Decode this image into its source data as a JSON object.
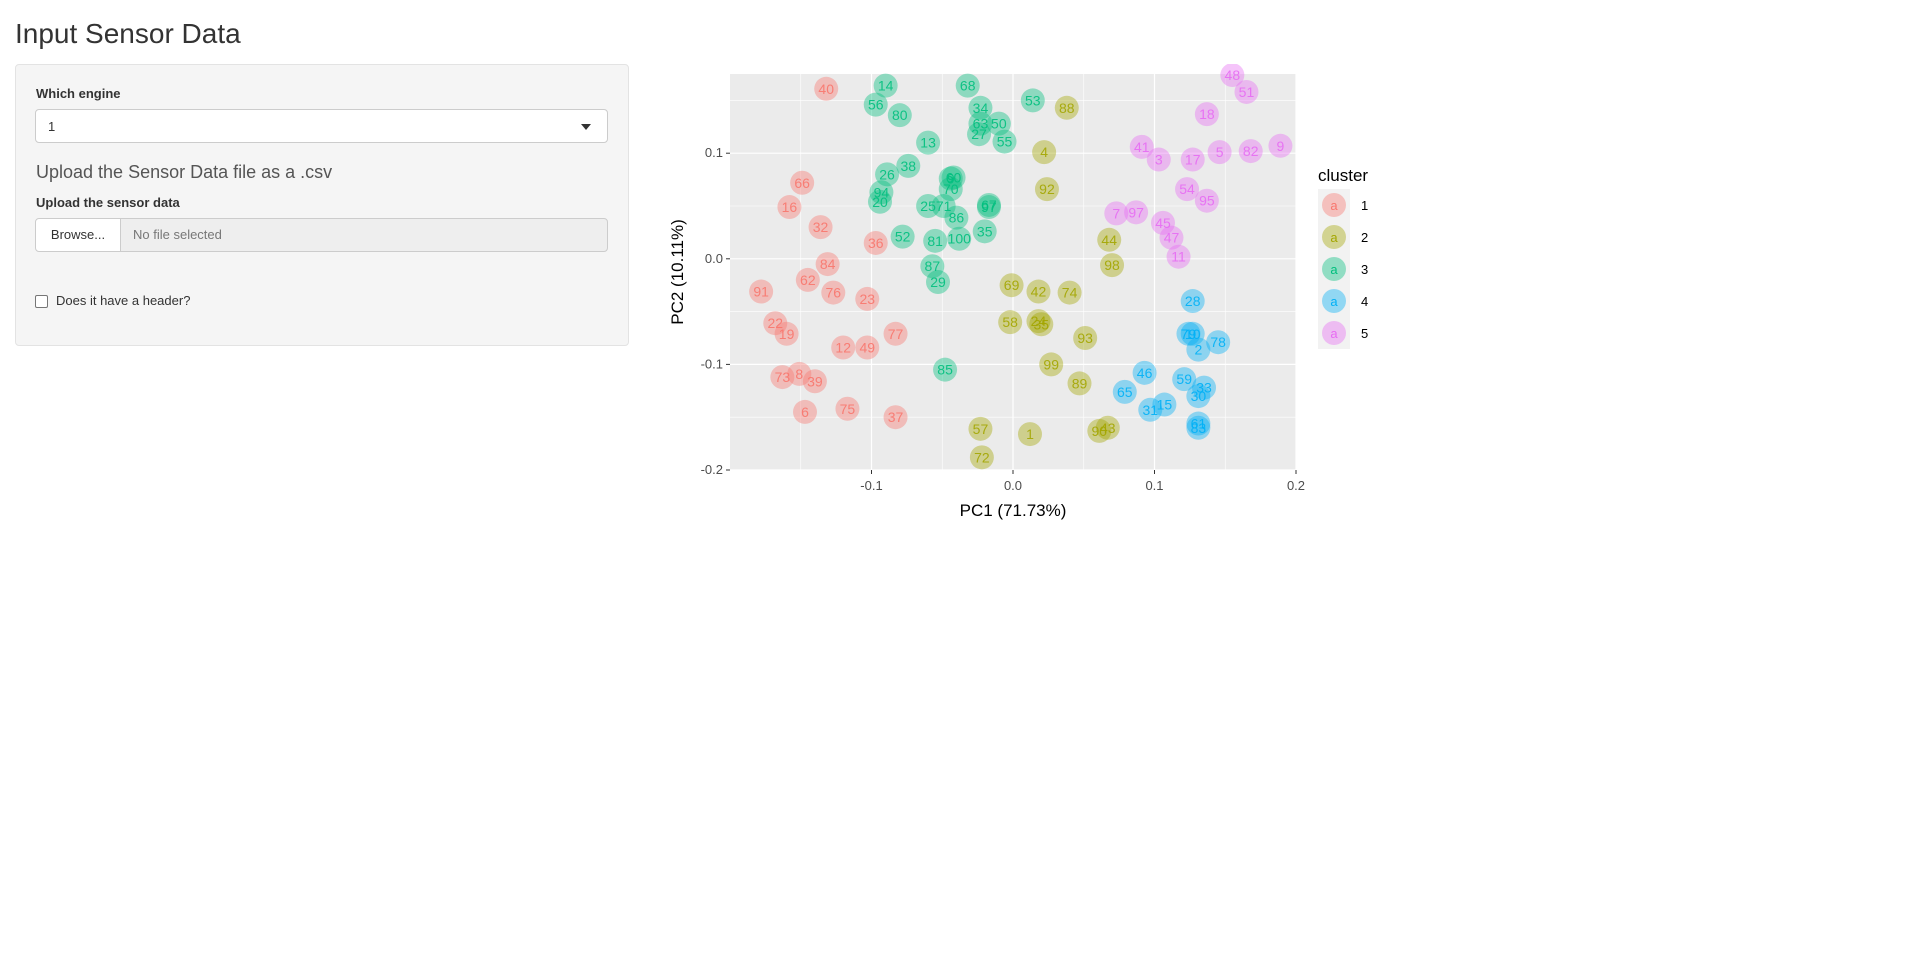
{
  "page": {
    "title": "Input Sensor Data"
  },
  "sidebar": {
    "engine_label": "Which engine",
    "engine_value": "1",
    "upload_heading": "Upload the Sensor Data file as a .csv",
    "upload_label": "Upload the sensor data",
    "browse_button": "Browse...",
    "file_placeholder": "No file selected",
    "header_checkbox_label": "Does it have a header?",
    "header_checked": false
  },
  "chart_data": {
    "type": "scatter",
    "xlabel": "PC1 (71.73%)",
    "ylabel": "PC2 (10.11%)",
    "xlim": [
      -0.2,
      0.2
    ],
    "ylim": [
      -0.2,
      0.175
    ],
    "x_ticks": [
      -0.1,
      0.0,
      0.1,
      0.2
    ],
    "x_tick_labels": [
      "-0.1",
      "0.0",
      "0.1",
      "0.2"
    ],
    "y_ticks": [
      -0.2,
      -0.1,
      0.0,
      0.1
    ],
    "y_tick_labels": [
      "-0.2",
      "-0.1",
      "0.0",
      "0.1"
    ],
    "grid": true,
    "legend": {
      "title": "cluster",
      "position": "right",
      "key_glyph": "a",
      "entries": [
        {
          "label": "1",
          "color": "#F8766D"
        },
        {
          "label": "2",
          "color": "#A3A500"
        },
        {
          "label": "3",
          "color": "#00BF7D"
        },
        {
          "label": "4",
          "color": "#00B0F6"
        },
        {
          "label": "5",
          "color": "#E76BF3"
        }
      ]
    },
    "series": [
      {
        "name": "1",
        "color": "#F8766D",
        "points": [
          {
            "x": -0.132,
            "y": 0.161,
            "label": "40"
          },
          {
            "x": -0.149,
            "y": 0.072,
            "label": "66"
          },
          {
            "x": -0.158,
            "y": 0.049,
            "label": "16"
          },
          {
            "x": -0.136,
            "y": 0.03,
            "label": "32"
          },
          {
            "x": -0.097,
            "y": 0.015,
            "label": "36"
          },
          {
            "x": -0.131,
            "y": -0.005,
            "label": "84"
          },
          {
            "x": -0.178,
            "y": -0.031,
            "label": "91"
          },
          {
            "x": -0.145,
            "y": -0.02,
            "label": "62"
          },
          {
            "x": -0.127,
            "y": -0.032,
            "label": "76"
          },
          {
            "x": -0.103,
            "y": -0.038,
            "label": "23"
          },
          {
            "x": -0.168,
            "y": -0.061,
            "label": "22"
          },
          {
            "x": -0.16,
            "y": -0.071,
            "label": "19"
          },
          {
            "x": -0.083,
            "y": -0.071,
            "label": "77"
          },
          {
            "x": -0.12,
            "y": -0.084,
            "label": "12"
          },
          {
            "x": -0.103,
            "y": -0.084,
            "label": "49"
          },
          {
            "x": -0.163,
            "y": -0.112,
            "label": "73"
          },
          {
            "x": -0.151,
            "y": -0.109,
            "label": "8"
          },
          {
            "x": -0.14,
            "y": -0.116,
            "label": "39"
          },
          {
            "x": -0.147,
            "y": -0.145,
            "label": "6"
          },
          {
            "x": -0.117,
            "y": -0.142,
            "label": "75"
          },
          {
            "x": -0.083,
            "y": -0.15,
            "label": "37"
          }
        ]
      },
      {
        "name": "2",
        "color": "#A3A500",
        "points": [
          {
            "x": 0.038,
            "y": 0.143,
            "label": "88"
          },
          {
            "x": 0.022,
            "y": 0.101,
            "label": "4"
          },
          {
            "x": 0.024,
            "y": 0.066,
            "label": "92"
          },
          {
            "x": 0.068,
            "y": 0.018,
            "label": "44"
          },
          {
            "x": 0.07,
            "y": -0.006,
            "label": "98"
          },
          {
            "x": -0.001,
            "y": -0.025,
            "label": "69"
          },
          {
            "x": 0.018,
            "y": -0.031,
            "label": "42"
          },
          {
            "x": 0.04,
            "y": -0.032,
            "label": "74"
          },
          {
            "x": -0.002,
            "y": -0.06,
            "label": "58"
          },
          {
            "x": 0.018,
            "y": -0.059,
            "label": "24"
          },
          {
            "x": 0.02,
            "y": -0.062,
            "label": "35"
          },
          {
            "x": 0.051,
            "y": -0.075,
            "label": "93"
          },
          {
            "x": 0.027,
            "y": -0.1,
            "label": "99"
          },
          {
            "x": 0.047,
            "y": -0.118,
            "label": "89"
          },
          {
            "x": -0.023,
            "y": -0.161,
            "label": "57"
          },
          {
            "x": 0.012,
            "y": -0.166,
            "label": "1"
          },
          {
            "x": 0.067,
            "y": -0.16,
            "label": "43"
          },
          {
            "x": 0.061,
            "y": -0.163,
            "label": "90"
          },
          {
            "x": -0.022,
            "y": -0.188,
            "label": "72"
          }
        ]
      },
      {
        "name": "3",
        "color": "#00BF7D",
        "points": [
          {
            "x": -0.09,
            "y": 0.164,
            "label": "14"
          },
          {
            "x": -0.097,
            "y": 0.146,
            "label": "56"
          },
          {
            "x": -0.08,
            "y": 0.136,
            "label": "80"
          },
          {
            "x": -0.032,
            "y": 0.164,
            "label": "68"
          },
          {
            "x": -0.023,
            "y": 0.143,
            "label": "34"
          },
          {
            "x": 0.014,
            "y": 0.15,
            "label": "53"
          },
          {
            "x": -0.023,
            "y": 0.128,
            "label": "63"
          },
          {
            "x": -0.01,
            "y": 0.128,
            "label": "50"
          },
          {
            "x": -0.024,
            "y": 0.118,
            "label": "27"
          },
          {
            "x": -0.006,
            "y": 0.111,
            "label": "55"
          },
          {
            "x": -0.06,
            "y": 0.11,
            "label": "13"
          },
          {
            "x": -0.074,
            "y": 0.088,
            "label": "38"
          },
          {
            "x": -0.089,
            "y": 0.08,
            "label": "26"
          },
          {
            "x": -0.042,
            "y": 0.077,
            "label": "60"
          },
          {
            "x": -0.044,
            "y": 0.076,
            "label": "9"
          },
          {
            "x": -0.044,
            "y": 0.066,
            "label": "70"
          },
          {
            "x": -0.093,
            "y": 0.063,
            "label": "94"
          },
          {
            "x": -0.094,
            "y": 0.054,
            "label": "20"
          },
          {
            "x": -0.06,
            "y": 0.05,
            "label": "25"
          },
          {
            "x": -0.049,
            "y": 0.05,
            "label": "71"
          },
          {
            "x": -0.017,
            "y": 0.051,
            "label": "67"
          },
          {
            "x": -0.017,
            "y": 0.049,
            "label": "97"
          },
          {
            "x": -0.04,
            "y": 0.039,
            "label": "86"
          },
          {
            "x": -0.02,
            "y": 0.026,
            "label": "35"
          },
          {
            "x": -0.078,
            "y": 0.021,
            "label": "52"
          },
          {
            "x": -0.055,
            "y": 0.017,
            "label": "81"
          },
          {
            "x": -0.038,
            "y": 0.019,
            "label": "100"
          },
          {
            "x": -0.057,
            "y": -0.007,
            "label": "87"
          },
          {
            "x": -0.053,
            "y": -0.022,
            "label": "29"
          },
          {
            "x": -0.048,
            "y": -0.105,
            "label": "85"
          }
        ]
      },
      {
        "name": "4",
        "color": "#00B0F6",
        "points": [
          {
            "x": 0.127,
            "y": -0.04,
            "label": "28"
          },
          {
            "x": 0.124,
            "y": -0.071,
            "label": "79"
          },
          {
            "x": 0.127,
            "y": -0.071,
            "label": "10"
          },
          {
            "x": 0.145,
            "y": -0.079,
            "label": "78"
          },
          {
            "x": 0.131,
            "y": -0.086,
            "label": "2"
          },
          {
            "x": 0.093,
            "y": -0.108,
            "label": "46"
          },
          {
            "x": 0.121,
            "y": -0.114,
            "label": "59"
          },
          {
            "x": 0.135,
            "y": -0.122,
            "label": "33"
          },
          {
            "x": 0.131,
            "y": -0.13,
            "label": "30"
          },
          {
            "x": 0.079,
            "y": -0.126,
            "label": "65"
          },
          {
            "x": 0.107,
            "y": -0.138,
            "label": "15"
          },
          {
            "x": 0.097,
            "y": -0.143,
            "label": "31"
          },
          {
            "x": 0.131,
            "y": -0.156,
            "label": "61"
          },
          {
            "x": 0.131,
            "y": -0.16,
            "label": "83"
          }
        ]
      },
      {
        "name": "5",
        "color": "#E76BF3",
        "points": [
          {
            "x": 0.155,
            "y": 0.174,
            "label": "48"
          },
          {
            "x": 0.165,
            "y": 0.158,
            "label": "51"
          },
          {
            "x": 0.137,
            "y": 0.137,
            "label": "18"
          },
          {
            "x": 0.091,
            "y": 0.106,
            "label": "41"
          },
          {
            "x": 0.103,
            "y": 0.094,
            "label": "3"
          },
          {
            "x": 0.127,
            "y": 0.094,
            "label": "17"
          },
          {
            "x": 0.146,
            "y": 0.101,
            "label": "5"
          },
          {
            "x": 0.168,
            "y": 0.102,
            "label": "82"
          },
          {
            "x": 0.189,
            "y": 0.107,
            "label": "9"
          },
          {
            "x": 0.123,
            "y": 0.066,
            "label": "54"
          },
          {
            "x": 0.137,
            "y": 0.055,
            "label": "95"
          },
          {
            "x": 0.073,
            "y": 0.043,
            "label": "7"
          },
          {
            "x": 0.087,
            "y": 0.044,
            "label": "97"
          },
          {
            "x": 0.106,
            "y": 0.034,
            "label": "45"
          },
          {
            "x": 0.112,
            "y": 0.02,
            "label": "47"
          },
          {
            "x": 0.117,
            "y": 0.002,
            "label": "11"
          }
        ]
      }
    ]
  }
}
